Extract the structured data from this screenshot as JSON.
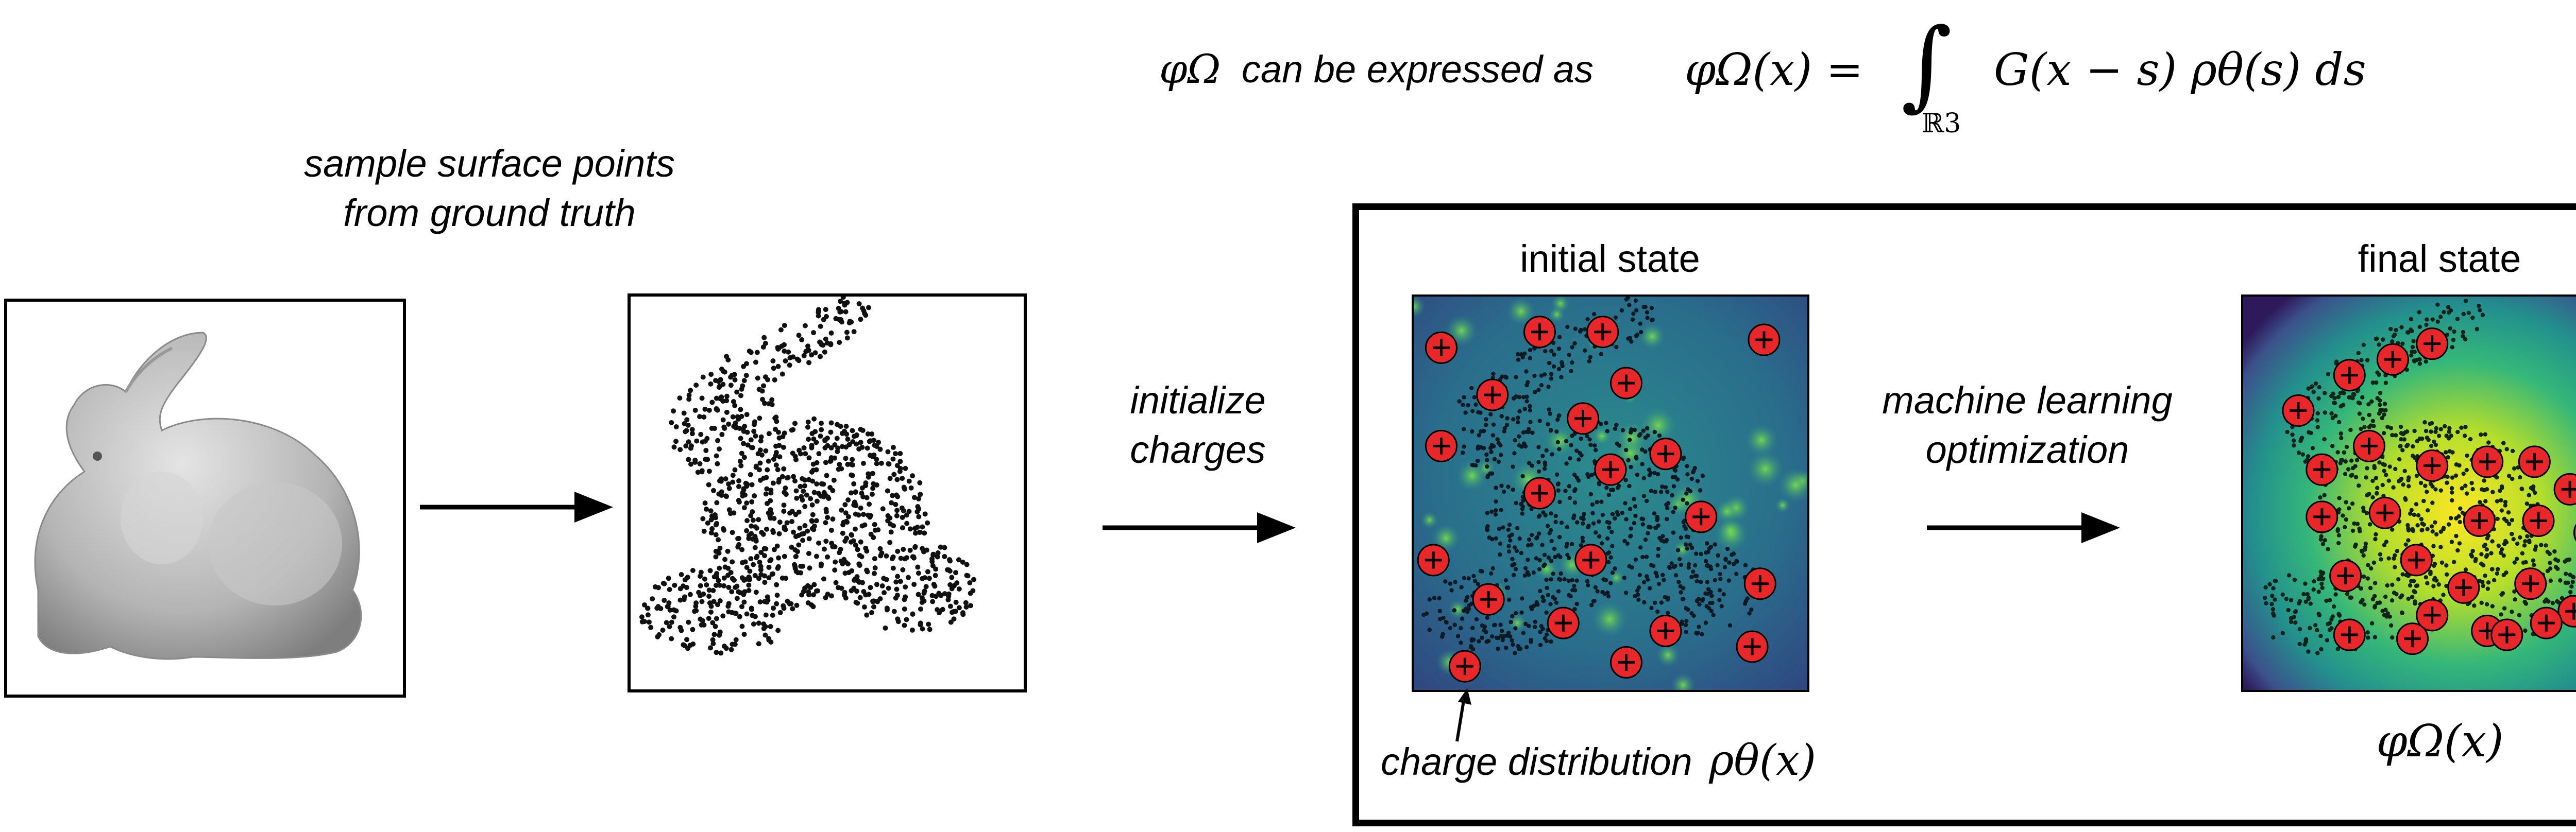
{
  "formula": {
    "lead_symbol": "φΩ",
    "lead_text": "can be expressed as",
    "lhs": "φΩ(x) =",
    "integral_symbol": "∫",
    "integral_domain": "ℝ3",
    "integrand": "G(x − s) ρθ(s) ds"
  },
  "step1": {
    "label_line1": "sample surface points",
    "label_line2": "from ground truth"
  },
  "step2": {
    "label_line1": "initialize",
    "label_line2": "charges"
  },
  "step3": {
    "label_line1": "machine learning",
    "label_line2": "optimization"
  },
  "initial_panel": {
    "title": "initial state",
    "caption_text": "charge distribution",
    "caption_math": "ρθ(x)"
  },
  "final_panel": {
    "title": "final state",
    "caption_math": "φΩ(x)"
  },
  "colors": {
    "charge_fill": "#e8272a",
    "field_low": "#2e1a5b",
    "field_mid": "#23908d",
    "field_high": "#fbe723",
    "initial_bg": "#2a6d8c"
  },
  "icons": {
    "charge": "plus-charge-icon",
    "arrow": "arrow-right-icon",
    "bunny": "bunny-mesh-image"
  }
}
